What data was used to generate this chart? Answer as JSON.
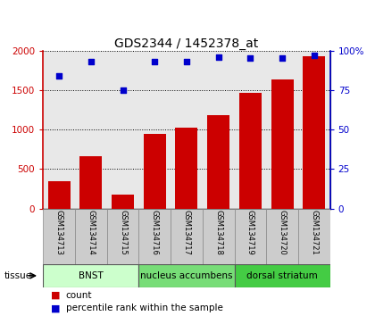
{
  "title": "GDS2344 / 1452378_at",
  "samples": [
    "GSM134713",
    "GSM134714",
    "GSM134715",
    "GSM134716",
    "GSM134717",
    "GSM134718",
    "GSM134719",
    "GSM134720",
    "GSM134721"
  ],
  "counts": [
    350,
    660,
    175,
    940,
    1020,
    1185,
    1470,
    1640,
    1930
  ],
  "percentiles": [
    84,
    93,
    75,
    93,
    93,
    96,
    95,
    95,
    97
  ],
  "ylim_left": [
    0,
    2000
  ],
  "ylim_right": [
    0,
    100
  ],
  "yticks_left": [
    0,
    500,
    1000,
    1500,
    2000
  ],
  "yticks_right": [
    0,
    25,
    50,
    75,
    100
  ],
  "bar_color": "#cc0000",
  "scatter_color": "#0000cc",
  "tissue_groups": [
    {
      "label": "BNST",
      "start": 0,
      "end": 3,
      "color": "#ccffcc"
    },
    {
      "label": "nucleus accumbens",
      "start": 3,
      "end": 6,
      "color": "#77dd77"
    },
    {
      "label": "dorsal striatum",
      "start": 6,
      "end": 9,
      "color": "#44cc44"
    }
  ],
  "legend_bar_label": "count",
  "legend_scatter_label": "percentile rank within the sample",
  "tissue_label": "tissue",
  "background_plot": "#e8e8e8",
  "background_xtick": "#cccccc"
}
